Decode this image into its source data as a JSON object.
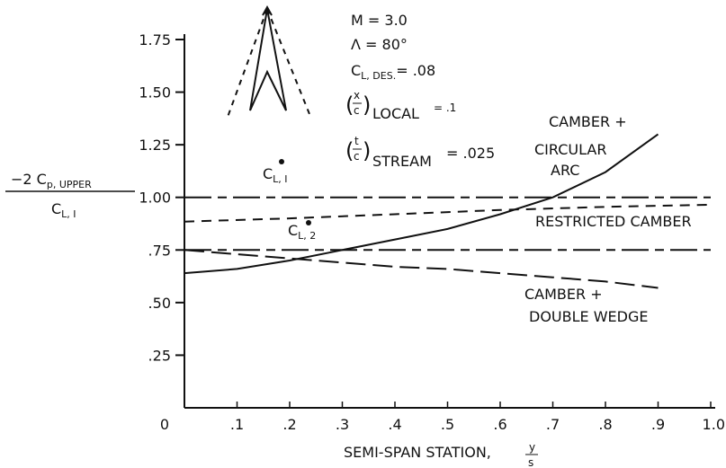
{
  "chart_data": {
    "type": "line",
    "xlabel": "SEMI-SPAN STATION,",
    "xlabel_fraction": {
      "num": "y",
      "den": "s"
    },
    "ylabel": {
      "num": "−2 C",
      "num_sub": "p, UPPER",
      "den": "C",
      "den_sub": "L, I"
    },
    "xlim": [
      0,
      1.0
    ],
    "ylim": [
      0,
      1.75
    ],
    "xticks": [
      "0",
      ".1",
      ".2",
      ".3",
      ".4",
      ".5",
      ".6",
      ".7",
      ".8",
      ".9",
      "1.0"
    ],
    "yticks": [
      ".25",
      ".50",
      ".75",
      "1.00",
      "1.25",
      "1.50",
      "1.75"
    ],
    "conditions": {
      "mach": "M = 3.0",
      "sweep": "Λ = 80°",
      "cl_des": {
        "sym": "C",
        "sub": "L, DES.",
        "val": "= .08"
      },
      "xc_local": {
        "num": "x",
        "den": "c",
        "sub": "LOCAL",
        "val": "= .1"
      },
      "tc_stream": {
        "num": "t",
        "den": "c",
        "sub": "STREAM",
        "val": "= .025"
      }
    },
    "markers": [
      {
        "label_main": "C",
        "label_sub": "L, I",
        "x": 0.2,
        "y": 1.16
      },
      {
        "label_main": "C",
        "label_sub": "L, 2",
        "x": 0.25,
        "y": 0.86
      }
    ],
    "series": [
      {
        "name": "CAMBER + CIRCULAR ARC",
        "label_lines": [
          "CAMBER +",
          "CIRCULAR",
          "ARC"
        ],
        "dash": "solid",
        "x": [
          0,
          0.1,
          0.2,
          0.3,
          0.4,
          0.5,
          0.6,
          0.7,
          0.8,
          0.9
        ],
        "y": [
          0.64,
          0.66,
          0.7,
          0.75,
          0.8,
          0.85,
          0.92,
          1.0,
          1.12,
          1.3
        ]
      },
      {
        "name": "CAMBER + DOUBLE WEDGE",
        "label_lines": [
          "CAMBER +",
          "DOUBLE WEDGE"
        ],
        "dash": "long",
        "x": [
          0,
          0.1,
          0.2,
          0.3,
          0.4,
          0.5,
          0.6,
          0.7,
          0.8,
          0.9
        ],
        "y": [
          0.75,
          0.73,
          0.71,
          0.69,
          0.67,
          0.66,
          0.64,
          0.62,
          0.6,
          0.57
        ]
      },
      {
        "name": "RESTRICTED CAMBER",
        "label_lines": [
          "RESTRICTED CAMBER"
        ],
        "dash": "short",
        "x": [
          0,
          0.2,
          0.4,
          0.6,
          0.8,
          1.0
        ],
        "y": [
          0.885,
          0.9,
          0.92,
          0.94,
          0.955,
          0.965
        ]
      },
      {
        "name": "",
        "dash": "longshort",
        "x": [
          0,
          1.0
        ],
        "y": [
          1.0,
          1.0
        ]
      },
      {
        "name": "",
        "dash": "longshort",
        "x": [
          0,
          1.0
        ],
        "y": [
          0.75,
          0.75
        ]
      }
    ]
  }
}
